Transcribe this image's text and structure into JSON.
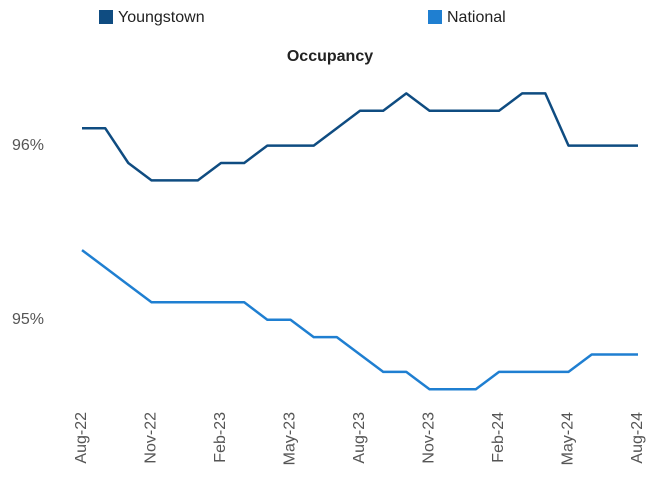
{
  "chart_data": {
    "type": "line",
    "title": "Occupancy",
    "categories": [
      "Aug-22",
      null,
      null,
      "Nov-22",
      null,
      null,
      "Feb-23",
      null,
      null,
      "May-23",
      null,
      null,
      "Aug-23",
      null,
      null,
      "Nov-23",
      null,
      null,
      "Feb-24",
      null,
      null,
      "May-24",
      null,
      null,
      "Aug-24"
    ],
    "series": [
      {
        "name": "Youngstown",
        "color": "#0f4c81",
        "values": [
          96.1,
          96.1,
          95.9,
          95.8,
          95.8,
          95.8,
          95.9,
          95.9,
          96.0,
          96.0,
          96.0,
          96.1,
          96.2,
          96.2,
          96.3,
          96.2,
          96.2,
          96.2,
          96.2,
          96.3,
          96.3,
          96.0,
          96.0,
          96.0,
          96.0
        ]
      },
      {
        "name": "National",
        "color": "#1f7fd1",
        "values": [
          95.4,
          95.3,
          95.2,
          95.1,
          95.1,
          95.1,
          95.1,
          95.1,
          95.0,
          95.0,
          94.9,
          94.9,
          94.8,
          94.7,
          94.7,
          94.6,
          94.6,
          94.6,
          94.7,
          94.7,
          94.7,
          94.7,
          94.8,
          94.8,
          94.8
        ]
      }
    ],
    "ylim": [
      94.55,
      96.4
    ],
    "yticks": [
      {
        "value": 95,
        "label": "95%"
      },
      {
        "value": 96,
        "label": "96%"
      }
    ],
    "grid": false
  }
}
